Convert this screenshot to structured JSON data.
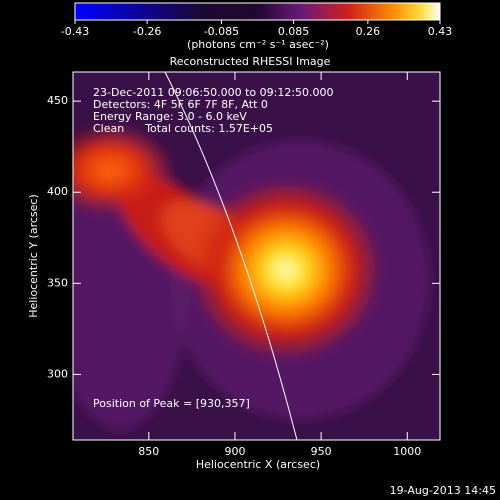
{
  "chart_data": {
    "type": "image",
    "title": "Reconstructed RHESSI Image",
    "colorbar": {
      "label": "(photons cm⁻² s⁻¹ asec⁻²)",
      "lim": [
        -0.43,
        0.43
      ],
      "ticks": [
        -0.43,
        -0.26,
        -0.085,
        0.085,
        0.26,
        0.43
      ]
    },
    "annotations": [
      "23-Dec-2011 09:06:50.000 to 09:12:50.000",
      "Detectors: 4F 5F 6F 7F 8F, Att 0",
      "Energy Range: 3.0 - 6.0 keV",
      "Clean      Total counts: 1.57E+05"
    ],
    "peak_label": "Position of Peak = [930,357]",
    "x_label": "Heliocentric X (arcsec)",
    "y_label": "Heliocentric Y (arcsec)",
    "xlim": [
      806,
      1019
    ],
    "xticks": [
      850,
      900,
      950,
      1000
    ],
    "ylim": [
      264,
      466
    ],
    "yticks": [
      300,
      350,
      400,
      450
    ],
    "footer": "19-Aug-2013 14:45"
  }
}
